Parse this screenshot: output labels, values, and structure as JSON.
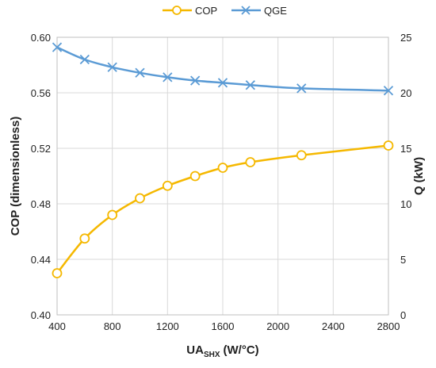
{
  "chart_data": {
    "type": "line",
    "title": "",
    "xlabel_main": "UA",
    "xlabel_sub": "SHX",
    "xlabel_unit": "(W/°C)",
    "ylabel_left": "COP (dimensionless)",
    "ylabel_right": "Q  (kW)",
    "xlim": [
      400,
      2800
    ],
    "ylim_left": [
      0.4,
      0.6
    ],
    "ylim_right": [
      0,
      25
    ],
    "xticks": [
      "400",
      "800",
      "1200",
      "1600",
      "2000",
      "2400",
      "2800"
    ],
    "yticks_left": [
      "0.40",
      "0.44",
      "0.48",
      "0.52",
      "0.56",
      "0.60"
    ],
    "yticks_right": [
      "0",
      "5",
      "10",
      "15",
      "20",
      "25"
    ],
    "grid": true,
    "legend_position": "top-center",
    "series": [
      {
        "name": "COP",
        "axis": "left",
        "color": "#F5B800",
        "marker": "circle",
        "x": [
          400,
          600,
          800,
          1000,
          1200,
          1400,
          1600,
          1800,
          2170,
          2800
        ],
        "y": [
          0.43,
          0.455,
          0.472,
          0.484,
          0.493,
          0.5,
          0.506,
          0.51,
          0.515,
          0.522
        ]
      },
      {
        "name": "QGE",
        "axis": "right",
        "color": "#5B9BD5",
        "marker": "x",
        "x": [
          400,
          600,
          800,
          1000,
          1200,
          1400,
          1600,
          1800,
          2170,
          2800
        ],
        "y": [
          24.1,
          23.0,
          22.3,
          21.8,
          21.4,
          21.1,
          20.9,
          20.7,
          20.4,
          20.2
        ]
      }
    ]
  }
}
